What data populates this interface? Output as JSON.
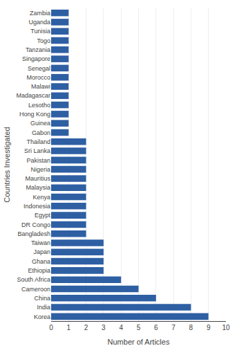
{
  "chart_data": {
    "type": "bar",
    "orientation": "horizontal",
    "categories": [
      "Korea",
      "India",
      "China",
      "Cameroon",
      "South Africa",
      "Ethiopia",
      "Ghana",
      "Japan",
      "Taiwan",
      "Bangladesh",
      "DR Congo",
      "Egypt",
      "Indonesia",
      "Kenya",
      "Malaysia",
      "Mauritius",
      "Nigeria",
      "Pakistan",
      "Sri Lanka",
      "Thailand",
      "Gabon",
      "Guinea",
      "Hong Kong",
      "Lesotho",
      "Madagascar",
      "Malawi",
      "Morocco",
      "Senegal",
      "Singapore",
      "Tanzania",
      "Togo",
      "Tunisia",
      "Uganda",
      "Zambia"
    ],
    "values": [
      9,
      8,
      6,
      5,
      4,
      3,
      3,
      3,
      3,
      2,
      2,
      2,
      2,
      2,
      2,
      2,
      2,
      2,
      2,
      2,
      1,
      1,
      1,
      1,
      1,
      1,
      1,
      1,
      1,
      1,
      1,
      1,
      1,
      1
    ],
    "color": "#2e5fa3",
    "xlabel": "Number of Articles",
    "ylabel": "Countries Investigated",
    "xlim": [
      0,
      10
    ],
    "xticks": [
      0,
      1,
      2,
      3,
      4,
      5,
      6,
      7,
      8,
      9,
      10
    ],
    "grid": true
  }
}
